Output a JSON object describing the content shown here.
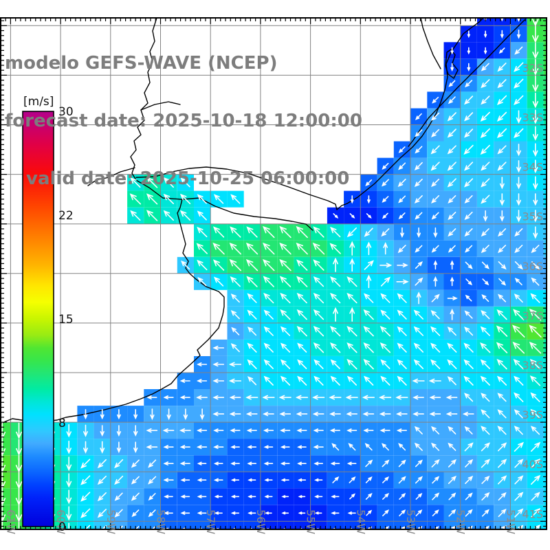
{
  "title": {
    "line1": "modelo GEFS-WAVE (NCEP)",
    "line2": "forecast date: 2025-10-18 12:00:00",
    "line3": "valid date: 2025-10-25 06:00:00"
  },
  "colorbar": {
    "unit_label": "[m/s]",
    "min": 0,
    "max": 30,
    "tick_labels": [
      "30",
      "22",
      "15",
      "8",
      "0"
    ],
    "gradient_stops": [
      [
        "0",
        "#B4008C"
      ],
      [
        "0.08",
        "#E10046"
      ],
      [
        "0.15",
        "#FA0A0A"
      ],
      [
        "0.23",
        "#FF4600"
      ],
      [
        "0.30",
        "#FF7D00"
      ],
      [
        "0.37",
        "#FFB400"
      ],
      [
        "0.42",
        "#FFE600"
      ],
      [
        "0.46",
        "#F5FF00"
      ],
      [
        "0.50",
        "#C8F500"
      ],
      [
        "0.54",
        "#96EB14"
      ],
      [
        "0.57",
        "#50E632"
      ],
      [
        "0.60",
        "#37E64B"
      ],
      [
        "0.63",
        "#23E673"
      ],
      [
        "0.67",
        "#00EBA5"
      ],
      [
        "0.70",
        "#00E6D7"
      ],
      [
        "0.73",
        "#00E1FF"
      ],
      [
        "0.77",
        "#2FC8FF"
      ],
      [
        "0.80",
        "#41AAFF"
      ],
      [
        "0.83",
        "#1E8CFF"
      ],
      [
        "0.87",
        "#0A64FF"
      ],
      [
        "0.90",
        "#0041FF"
      ],
      [
        "0.93",
        "#0023FA"
      ],
      [
        "1",
        "#0000DC"
      ]
    ]
  },
  "axes": {
    "lat_labels": [
      "32S",
      "33S",
      "34S",
      "35S",
      "36S",
      "37S",
      "38S",
      "39S",
      "40S",
      "41S"
    ],
    "lon_labels": [
      "61W",
      "60W",
      "59W",
      "58W",
      "57W",
      "56W",
      "55W",
      "54W",
      "53W",
      "52W",
      "51W"
    ]
  },
  "colors": {
    "grid": "#828282",
    "axis_label": "#8C8C8C",
    "title": "#7D7D7D",
    "frame": "#000000",
    "coast": "#000000",
    "arrow": "#FFFFFF"
  },
  "map_data": {
    "type": "heatmap",
    "quantity": "wind/wave speed",
    "units": "m/s",
    "value_encoding": "'.'=land/no-data, '0'-'9'=0-9 m/s, a=10 b=11 c=12 d=13 m/s",
    "direction_encoding": "arrow direction: 1=N 2=NE 3=E 4=SE 5=S 6=SW 7=W 8=NW",
    "value_ramp": [
      [
        0,
        "#0000DC"
      ],
      [
        2,
        "#0023FA"
      ],
      [
        3,
        "#0041FF"
      ],
      [
        4,
        "#0A64FF"
      ],
      [
        5,
        "#1E8CFF"
      ],
      [
        6,
        "#41AAFF"
      ],
      [
        7,
        "#2FC8FF"
      ],
      [
        8,
        "#00E1FF"
      ],
      [
        9,
        "#00E6D7"
      ],
      [
        10,
        "#00EBA5"
      ],
      [
        11,
        "#23E673"
      ],
      [
        12,
        "#37E64B"
      ],
      [
        13,
        "#50E632"
      ]
    ],
    "value_rows": [
      ".............................223cc",
      "............................2234cc",
      "...........................22236bc",
      "...........................33678bc",
      "...........................45778bb",
      "..........................457788ab",
      ".........................46778889a",
      ".........................567788899",
      "........................4577887789",
      ".......................45677777788",
      "........9a98..........456667777788",
      "........aa99888......3345666677778",
      "........9a998.......22234556666777",
      "............9aaabbba98765556666677",
      "............abbbbbbba9876555566667",
      "...........79abbbbaa98876544556666",
      "............789aaaa999887654445566",
      "..............78999999888765456788",
      "..............78899999988876679aba",
      "..............6788999999888778acdb",
      ".............67888899999888889abba",
      "............5678888889988888889999",
      "...........55677888888888777888899",
      ".........5556667777777777666777888",
      ".....55556666666666666666666677788",
      "cba9876666665555555555555666677778",
      "cba9877666555544444555555666777888",
      "dcba987766554444444444555566677788",
      "dcba987766544433333344445556667788",
      "ccba987665444333322333444455566778",
      "ccba987655444333222233344445556788",
      "ccba987655444333222233344445556788"
    ],
    "dir_rows": [
      ".............................55555",
      "............................555555",
      "...........................5556655",
      "...........................5566655",
      "...........................6666655",
      "..........................66666655",
      ".........................666666555",
      ".........................666666655",
      "........................6666666555",
      ".......................66666666555",
      "........8888..........666666665555",
      "........8888888......5566666665555",
      "........88888.......44466666655555",
      "............8888888886665556666655",
      "............8888888881116666666666",
      "...........88888888811233211444444",
      "............8888888888123211444888",
      "..............88888888888123888888",
      "..............88888811888881888888",
      "..............88888888888888888888",
      ".............788888888888888888888",
      "............7778888888888888888888",
      "...........77778888888888778888888",
      ".........7777777777777777777888888",
      ".....55555555777777777777777788888",
      "555555555777777777777777788888888 ",
      "555555555777777777778888888822222 ",
      "555556666677777777777722222222222 ",
      "555556666677777777772222222222222 ",
      "555556666677777777777222222222222 ",
      "555556666677777777777722222222222 ",
      "555556666677777777777722222222222 "
    ]
  }
}
